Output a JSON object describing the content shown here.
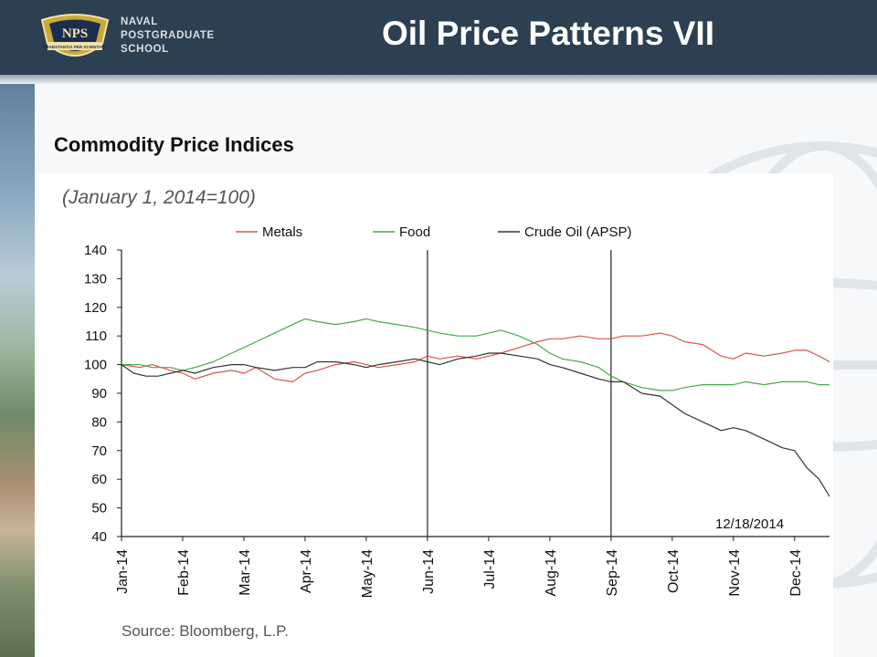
{
  "header": {
    "title": "Oil Price Patterns VII",
    "logo_lines": [
      "NAVAL",
      "POSTGRADUATE",
      "SCHOOL"
    ],
    "logo_badge": "NPS",
    "logo_motto": "PRAESTANTIA PER SCIENTIAM",
    "background": "#2d4051"
  },
  "subtitle": "Commodity Price Indices",
  "chart_data": {
    "type": "line",
    "note": "(January 1, 2014=100)",
    "end_date_label": "12/18/2014",
    "source": "Source: Bloomberg, L.P.",
    "x_tick_labels": [
      "Jan-14",
      "Feb-14",
      "Mar-14",
      "Apr-14",
      "May-14",
      "Jun-14",
      "Jul-14",
      "Aug-14",
      "Sep-14",
      "Oct-14",
      "Nov-14",
      "Dec-14"
    ],
    "x_range": [
      0,
      11.57
    ],
    "ylim": [
      40,
      140
    ],
    "y_ticks": [
      40,
      50,
      60,
      70,
      80,
      90,
      100,
      110,
      120,
      130,
      140
    ],
    "vertical_markers": [
      5,
      8
    ],
    "legend_position": "top",
    "series": [
      {
        "name": "Metals",
        "color": "#d9534f",
        "x": [
          0,
          0.3,
          0.5,
          0.8,
          1.0,
          1.2,
          1.5,
          1.8,
          2.0,
          2.2,
          2.5,
          2.8,
          3.0,
          3.2,
          3.5,
          3.8,
          4.0,
          4.2,
          4.5,
          4.8,
          5.0,
          5.2,
          5.5,
          5.8,
          6.0,
          6.2,
          6.5,
          6.8,
          7.0,
          7.2,
          7.5,
          7.8,
          8.0,
          8.2,
          8.5,
          8.8,
          9.0,
          9.2,
          9.5,
          9.8,
          10.0,
          10.2,
          10.5,
          10.8,
          11.0,
          11.2,
          11.4,
          11.57
        ],
        "values": [
          100,
          99,
          100,
          98,
          97,
          95,
          97,
          98,
          97,
          99,
          95,
          94,
          97,
          98,
          100,
          101,
          100,
          99,
          100,
          101,
          103,
          102,
          103,
          102,
          103,
          104,
          106,
          108,
          109,
          109,
          110,
          109,
          109,
          110,
          110,
          111,
          110,
          108,
          107,
          103,
          102,
          104,
          103,
          104,
          105,
          105,
          103,
          101
        ]
      },
      {
        "name": "Food",
        "color": "#4aa84a",
        "x": [
          0,
          0.3,
          0.5,
          0.8,
          1.0,
          1.2,
          1.5,
          1.8,
          2.0,
          2.2,
          2.5,
          2.8,
          3.0,
          3.2,
          3.5,
          3.8,
          4.0,
          4.2,
          4.5,
          4.8,
          5.0,
          5.2,
          5.5,
          5.8,
          6.0,
          6.2,
          6.5,
          6.8,
          7.0,
          7.2,
          7.5,
          7.8,
          8.0,
          8.2,
          8.5,
          8.8,
          9.0,
          9.2,
          9.5,
          9.8,
          10.0,
          10.2,
          10.5,
          10.8,
          11.0,
          11.2,
          11.4,
          11.57
        ],
        "values": [
          100,
          100,
          99,
          99,
          98,
          99,
          101,
          104,
          106,
          108,
          111,
          114,
          116,
          115,
          114,
          115,
          116,
          115,
          114,
          113,
          112,
          111,
          110,
          110,
          111,
          112,
          110,
          107,
          104,
          102,
          101,
          99,
          96,
          94,
          92,
          91,
          91,
          92,
          93,
          93,
          93,
          94,
          93,
          94,
          94,
          94,
          93,
          93
        ]
      },
      {
        "name": "Crude Oil (APSP)",
        "color": "#333333",
        "x": [
          0,
          0.2,
          0.4,
          0.6,
          0.8,
          1.0,
          1.2,
          1.5,
          1.8,
          2.0,
          2.2,
          2.5,
          2.8,
          3.0,
          3.2,
          3.5,
          3.8,
          4.0,
          4.2,
          4.5,
          4.8,
          5.0,
          5.2,
          5.5,
          5.8,
          6.0,
          6.2,
          6.5,
          6.8,
          7.0,
          7.2,
          7.5,
          7.8,
          8.0,
          8.2,
          8.5,
          8.8,
          9.0,
          9.2,
          9.5,
          9.8,
          10.0,
          10.2,
          10.5,
          10.8,
          11.0,
          11.2,
          11.4,
          11.57
        ],
        "values": [
          100,
          97,
          96,
          96,
          97,
          98,
          97,
          99,
          100,
          100,
          99,
          98,
          99,
          99,
          101,
          101,
          100,
          99,
          100,
          101,
          102,
          101,
          100,
          102,
          103,
          104,
          104,
          103,
          102,
          100,
          99,
          97,
          95,
          94,
          94,
          90,
          89,
          86,
          83,
          80,
          77,
          78,
          77,
          74,
          71,
          70,
          64,
          60,
          54
        ]
      }
    ]
  }
}
